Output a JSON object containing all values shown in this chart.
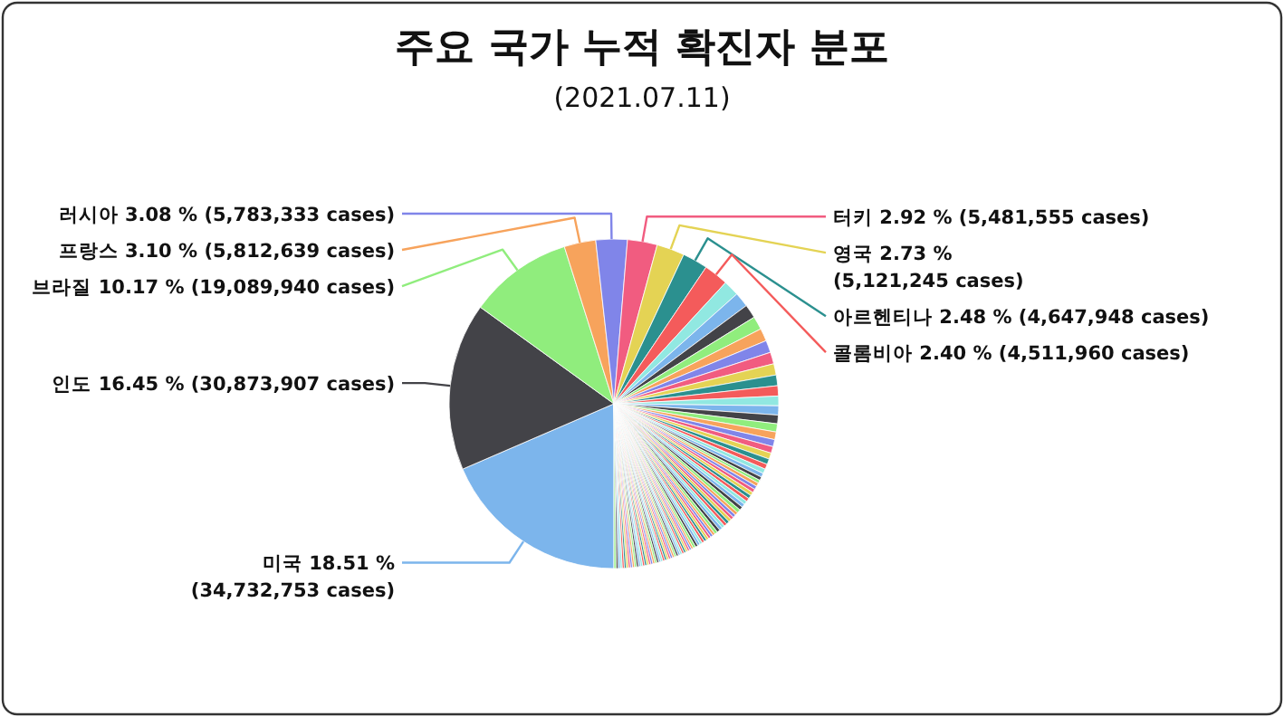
{
  "chart_data": {
    "type": "pie",
    "title": "주요 국가 누적 확진자 분포",
    "subtitle": "(2021.07.11)",
    "categories": [
      "미국",
      "인도",
      "브라질",
      "프랑스",
      "러시아",
      "터키",
      "영국",
      "아르헨티나",
      "콜롬비아",
      null,
      null,
      null,
      null,
      null,
      null,
      null,
      null,
      null,
      null,
      null,
      null,
      null,
      null,
      null,
      null,
      null,
      null,
      null,
      null,
      null,
      null,
      null,
      null,
      null,
      null,
      null,
      null,
      null,
      null,
      null,
      null,
      null,
      null,
      null,
      null,
      null,
      null,
      null,
      null,
      null,
      null,
      null,
      null,
      null,
      null,
      null,
      null,
      null,
      null,
      null,
      null,
      null,
      null,
      null,
      null,
      null,
      null,
      null,
      null,
      null,
      null,
      null,
      null,
      null,
      null,
      null,
      null,
      null,
      null,
      null,
      null,
      null,
      null,
      null,
      null,
      null,
      null,
      null,
      null,
      null,
      null,
      null,
      null,
      null,
      null,
      null,
      null,
      null,
      null,
      null,
      null,
      null,
      null
    ],
    "values": [
      18.51,
      16.45,
      10.17,
      3.1,
      3.08,
      2.92,
      2.73,
      2.48,
      2.4,
      1.55,
      1.45,
      1.35,
      1.3,
      1.25,
      1.2,
      1.15,
      1.1,
      1.05,
      1.0,
      0.95,
      0.9,
      0.85,
      0.8,
      0.75,
      0.7,
      0.65,
      0.6,
      0.55,
      0.5,
      0.45,
      0.4,
      0.35,
      0.3,
      0.35,
      0.35,
      0.35,
      0.35,
      0.35,
      0.35,
      0.35,
      0.35,
      0.35,
      0.35,
      0.3,
      0.3,
      0.3,
      0.3,
      0.3,
      0.3,
      0.3,
      0.3,
      0.3,
      0.3,
      0.25,
      0.25,
      0.25,
      0.25,
      0.25,
      0.25,
      0.25,
      0.25,
      0.25,
      0.25,
      0.2,
      0.2,
      0.2,
      0.2,
      0.2,
      0.2,
      0.2,
      0.2,
      0.2,
      0.2,
      0.2,
      0.2,
      0.2,
      0.2,
      0.2,
      0.2,
      0.2,
      0.2,
      0.2,
      0.2,
      0.2,
      0.2,
      0.2,
      0.2,
      0.2,
      0.2,
      0.2,
      0.2,
      0.2,
      0.2,
      0.2,
      0.2,
      0.2,
      0.2,
      0.2,
      0.2,
      0.2,
      0.2,
      0.2,
      0.2
    ],
    "value_labels": [
      "18.51 %\n(34,732,753 cases)",
      "16.45 % (30,873,907 cases)",
      "10.17 % (19,089,940 cases)",
      "3.10 % (5,812,639 cases)",
      "3.08 % (5,783,333 cases)",
      "2.92 % (5,481,555 cases)",
      "2.73 %\n(5,121,245 cases)",
      "2.48 % (4,647,948 cases)",
      "2.40 % (4,511,960 cases)",
      null,
      null,
      null,
      null,
      null,
      null,
      null,
      null,
      null,
      null,
      null,
      null,
      null,
      null,
      null,
      null,
      null,
      null,
      null,
      null,
      null,
      null,
      null,
      null,
      null,
      null,
      null,
      null,
      null,
      null,
      null,
      null,
      null,
      null,
      null,
      null,
      null,
      null,
      null,
      null,
      null,
      null,
      null,
      null,
      null,
      null,
      null,
      null,
      null,
      null,
      null,
      null,
      null,
      null,
      null,
      null,
      null,
      null,
      null,
      null,
      null,
      null,
      null,
      null,
      null,
      null,
      null,
      null,
      null,
      null,
      null,
      null,
      null,
      null,
      null,
      null,
      null,
      null,
      null,
      null,
      null,
      null,
      null,
      null,
      null,
      null,
      null,
      null,
      null,
      null,
      null,
      null,
      null,
      null
    ],
    "colors": [
      "#7cb5ec",
      "#434348",
      "#90ed7d",
      "#f7a35c",
      "#8085e9",
      "#f15c80",
      "#e4d354",
      "#2b908f",
      "#f45b5b",
      "#91e8e1",
      "#7cb5ec",
      "#434348",
      "#90ed7d",
      "#f7a35c",
      "#8085e9",
      "#f15c80",
      "#e4d354",
      "#2b908f",
      "#f45b5b",
      "#91e8e1",
      "#7cb5ec",
      "#434348",
      "#90ed7d",
      "#f7a35c",
      "#8085e9",
      "#f15c80",
      "#e4d354",
      "#2b908f",
      "#f45b5b",
      "#91e8e1",
      "#7cb5ec",
      "#434348",
      "#90ed7d",
      "#f7a35c",
      "#8085e9",
      "#f15c80",
      "#e4d354",
      "#2b908f",
      "#f45b5b",
      "#91e8e1",
      "#7cb5ec",
      "#434348",
      "#90ed7d",
      "#f7a35c",
      "#8085e9",
      "#f15c80",
      "#e4d354",
      "#2b908f",
      "#f45b5b",
      "#91e8e1",
      "#7cb5ec",
      "#434348",
      "#90ed7d",
      "#f7a35c",
      "#8085e9",
      "#f15c80",
      "#e4d354",
      "#2b908f",
      "#f45b5b",
      "#91e8e1",
      "#7cb5ec",
      "#434348",
      "#90ed7d",
      "#f7a35c",
      "#8085e9",
      "#f15c80",
      "#e4d354",
      "#2b908f",
      "#f45b5b",
      "#91e8e1",
      "#7cb5ec",
      "#434348",
      "#90ed7d",
      "#f7a35c",
      "#8085e9",
      "#f15c80",
      "#e4d354",
      "#2b908f",
      "#f45b5b",
      "#91e8e1",
      "#7cb5ec",
      "#434348",
      "#90ed7d",
      "#f7a35c",
      "#8085e9",
      "#f15c80",
      "#e4d354",
      "#2b908f",
      "#f45b5b",
      "#91e8e1",
      "#7cb5ec",
      "#434348",
      "#90ed7d",
      "#f7a35c",
      "#8085e9",
      "#f15c80",
      "#e4d354",
      "#2b908f",
      "#f45b5b",
      "#91e8e1",
      "#7cb5ec",
      "#434348",
      "#90ed7d"
    ]
  }
}
